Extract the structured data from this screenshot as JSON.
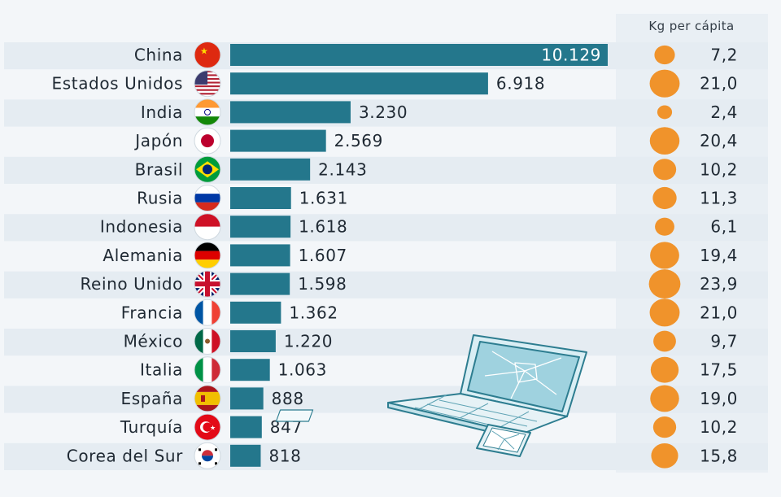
{
  "header": {
    "per_capita_label": "Kg per cápita"
  },
  "colors": {
    "bar": "#24778c",
    "dot": "#f0932b",
    "row_band": "#e5ecf2"
  },
  "chart_data": {
    "type": "bar",
    "orientation": "horizontal",
    "categories": [
      "China",
      "Estados Unidos",
      "India",
      "Japón",
      "Brasil",
      "Rusia",
      "Indonesia",
      "Alemania",
      "Reino Unido",
      "Francia",
      "México",
      "Italia",
      "España",
      "Turquía",
      "Corea del Sur"
    ],
    "flags": [
      "china-flag-icon",
      "usa-flag-icon",
      "india-flag-icon",
      "japan-flag-icon",
      "brazil-flag-icon",
      "russia-flag-icon",
      "indonesia-flag-icon",
      "germany-flag-icon",
      "uk-flag-icon",
      "france-flag-icon",
      "mexico-flag-icon",
      "italy-flag-icon",
      "spain-flag-icon",
      "turkey-flag-icon",
      "south-korea-flag-icon"
    ],
    "series": [
      {
        "values": [
          10129,
          6918,
          3230,
          2569,
          2143,
          1631,
          1618,
          1607,
          1598,
          1362,
          1220,
          1063,
          888,
          847,
          818
        ],
        "labels": [
          "10.129",
          "6.918",
          "3.230",
          "2.569",
          "2.143",
          "1.631",
          "1.618",
          "1.607",
          "1.598",
          "1.362",
          "1.220",
          "1.063",
          "888",
          "847",
          "818"
        ]
      },
      {
        "name": "Kg per cápita",
        "values": [
          7.2,
          21.0,
          2.4,
          20.4,
          10.2,
          11.3,
          6.1,
          19.4,
          23.9,
          21.0,
          9.7,
          17.5,
          19.0,
          10.2,
          15.8
        ],
        "labels": [
          "7,2",
          "21,0",
          "2,4",
          "20,4",
          "10,2",
          "11,3",
          "6,1",
          "19,4",
          "23,9",
          "21,0",
          "9,7",
          "17,5",
          "19,0",
          "10,2",
          "15,8"
        ]
      }
    ]
  },
  "decoration": {
    "illustration": "broken-laptop-and-phone-icon"
  }
}
